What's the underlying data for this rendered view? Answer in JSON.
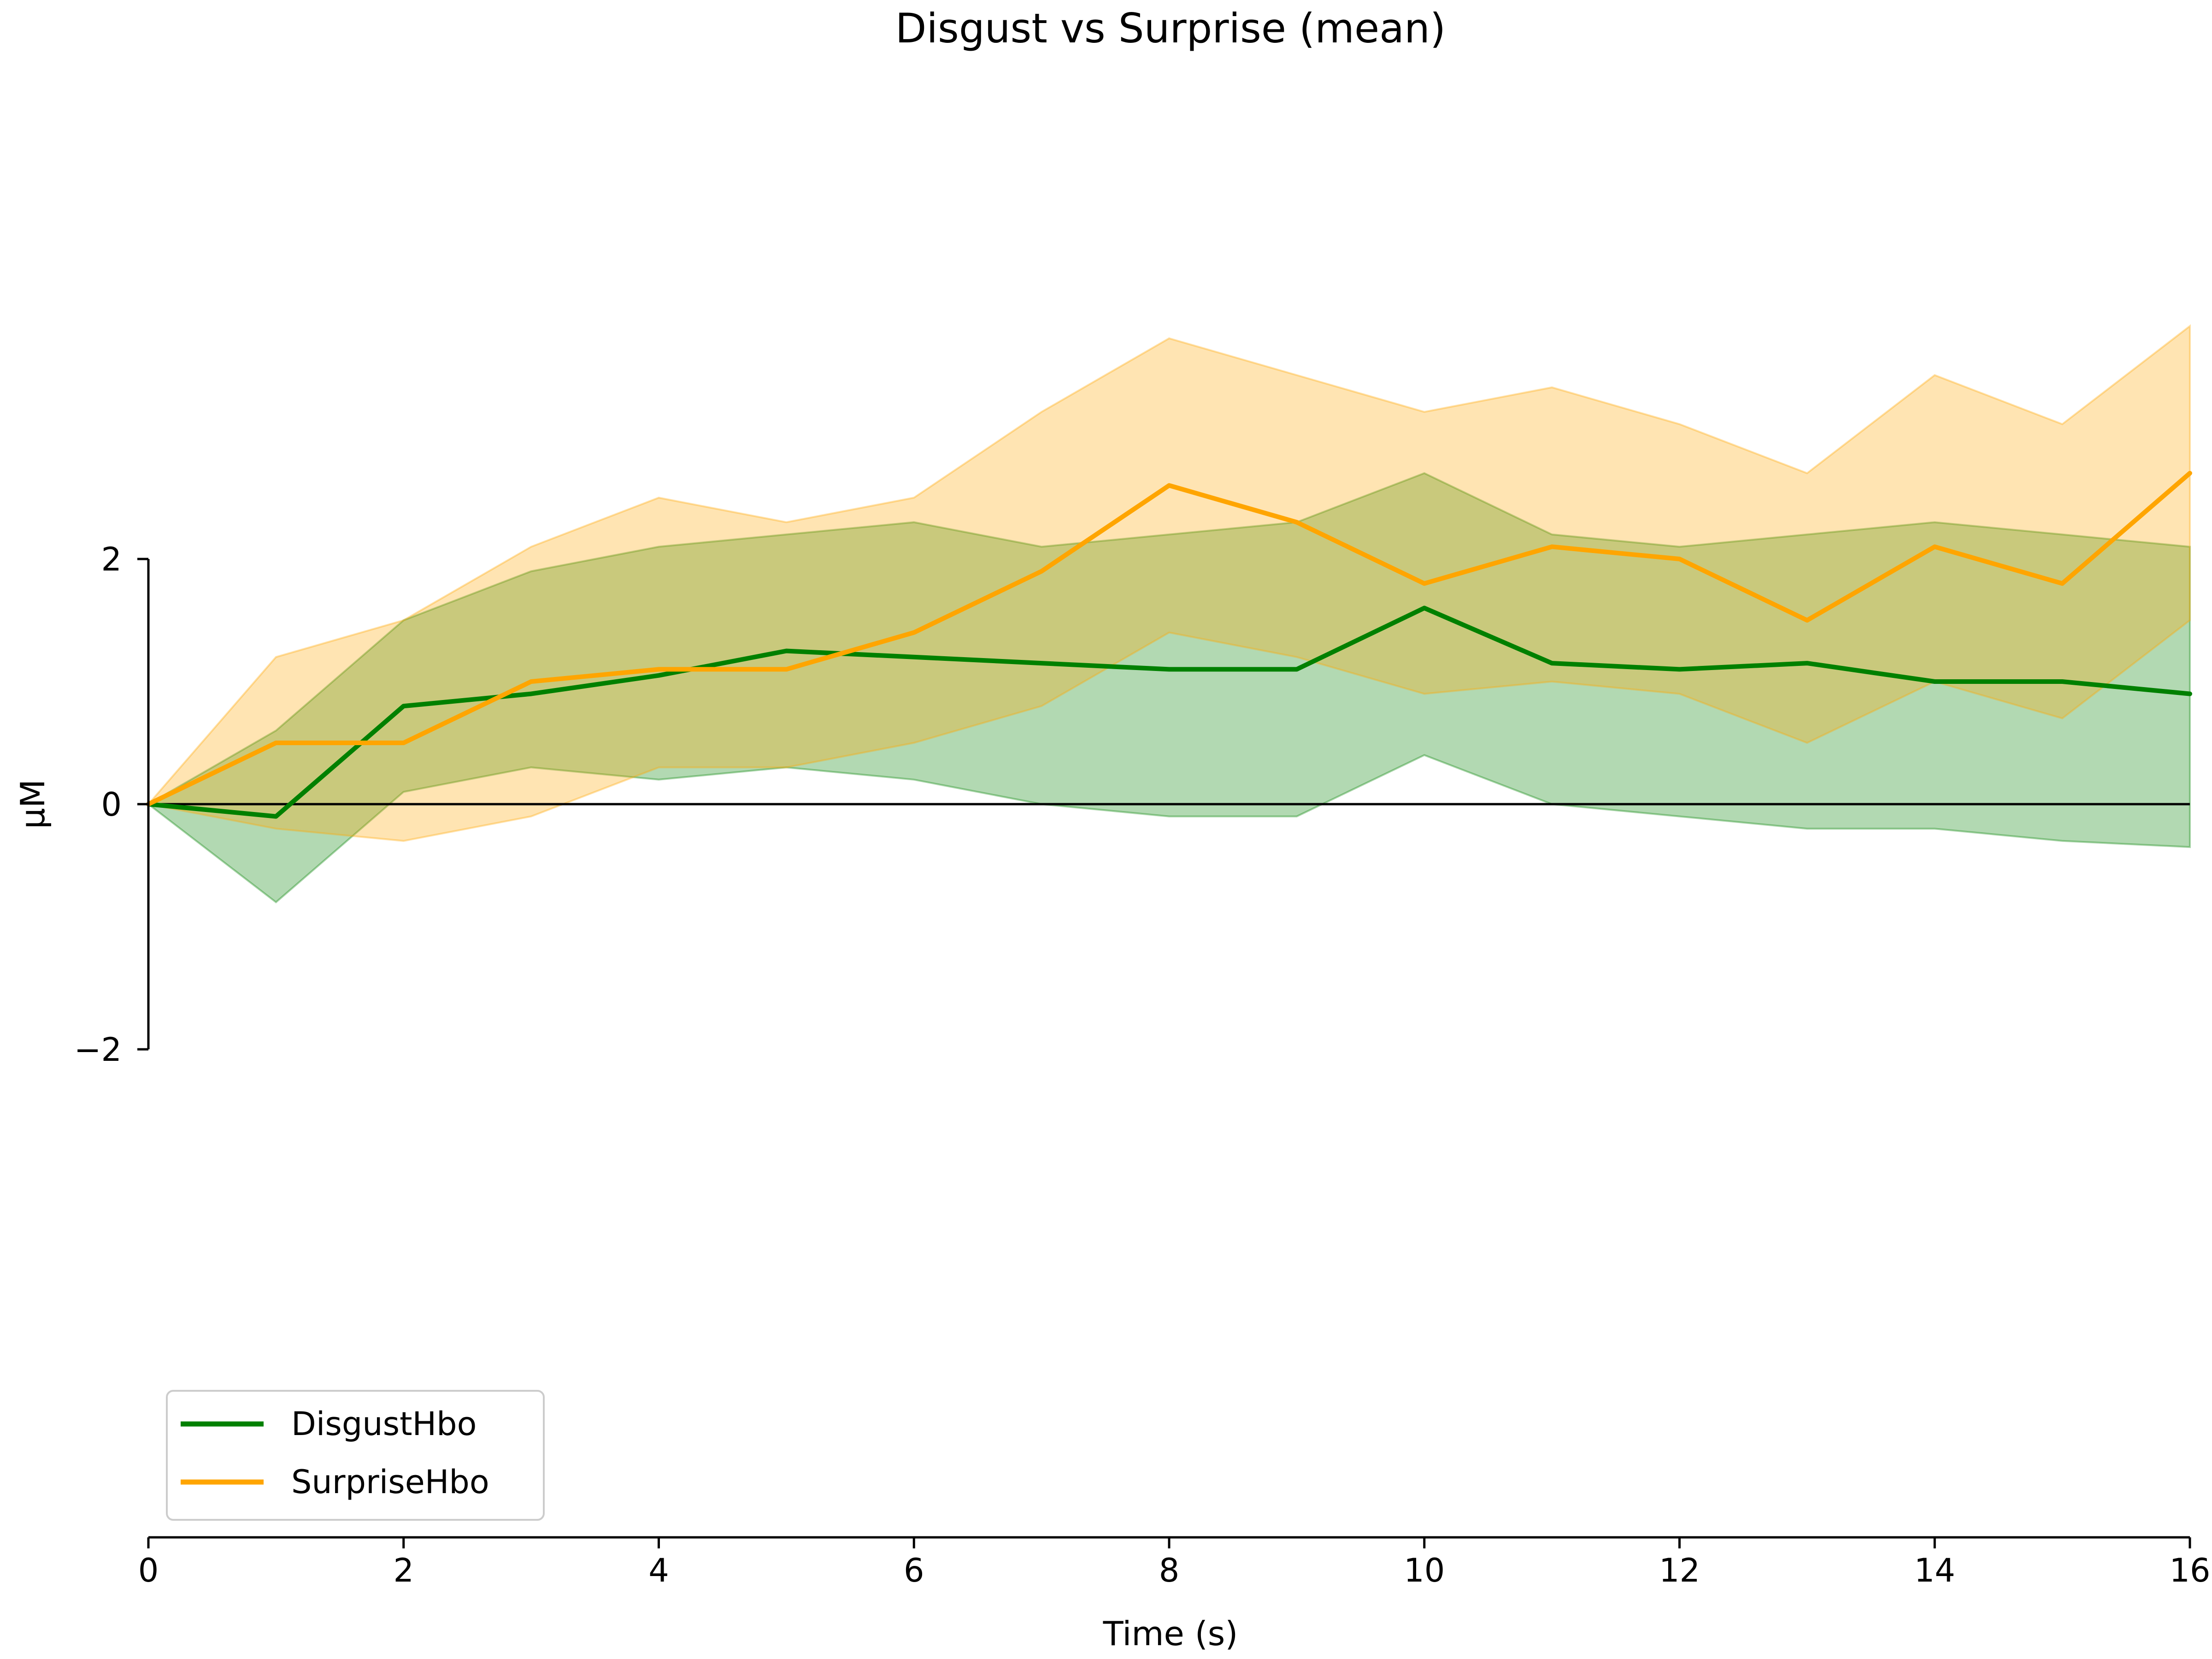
{
  "chart_data": {
    "type": "line",
    "title": "Disgust vs Surprise (mean)",
    "xlabel": "Time (s)",
    "ylabel": "μM",
    "xlim": [
      0,
      16
    ],
    "ylim": [
      -2,
      2
    ],
    "x_ticks": [
      0,
      2,
      4,
      6,
      8,
      10,
      12,
      14,
      16
    ],
    "y_ticks": [
      -2,
      0,
      2
    ],
    "x_tick_labels": [
      "0",
      "2",
      "4",
      "6",
      "8",
      "10",
      "12",
      "14",
      "16"
    ],
    "y_tick_labels": [
      "−2",
      "0",
      "2"
    ],
    "zero_line": true,
    "grid": false,
    "legend_position": "lower-left",
    "x": [
      0,
      1,
      2,
      3,
      4,
      5,
      6,
      7,
      8,
      9,
      10,
      11,
      12,
      13,
      14,
      15,
      16
    ],
    "series": [
      {
        "name": "DisgustHbo",
        "color": "#008000",
        "values": [
          0.0,
          -0.1,
          0.8,
          0.9,
          1.05,
          1.25,
          1.2,
          1.15,
          1.1,
          1.1,
          1.6,
          1.15,
          1.1,
          1.15,
          1.0,
          1.0,
          0.9
        ],
        "ci_lower": [
          0.0,
          -0.8,
          0.1,
          0.3,
          0.2,
          0.3,
          0.2,
          0.0,
          -0.1,
          -0.1,
          0.4,
          0.0,
          -0.1,
          -0.2,
          -0.2,
          -0.3,
          -0.35
        ],
        "ci_upper": [
          0.0,
          0.6,
          1.5,
          1.9,
          2.1,
          2.2,
          2.3,
          2.1,
          2.2,
          2.3,
          2.7,
          2.2,
          2.1,
          2.2,
          2.3,
          2.2,
          2.1
        ]
      },
      {
        "name": "SurpriseHbo",
        "color": "#FFA500",
        "values": [
          0.0,
          0.5,
          0.5,
          1.0,
          1.1,
          1.1,
          1.4,
          1.9,
          2.6,
          2.3,
          1.8,
          2.1,
          2.0,
          1.5,
          2.1,
          1.8,
          2.7
        ],
        "ci_lower": [
          0.0,
          -0.2,
          -0.3,
          -0.1,
          0.3,
          0.3,
          0.5,
          0.8,
          1.4,
          1.2,
          0.9,
          1.0,
          0.9,
          0.5,
          1.0,
          0.7,
          1.5
        ],
        "ci_upper": [
          0.0,
          1.2,
          1.5,
          2.1,
          2.5,
          2.3,
          2.5,
          3.2,
          3.8,
          3.5,
          3.2,
          3.4,
          3.1,
          2.7,
          3.5,
          3.1,
          3.9
        ]
      }
    ]
  }
}
